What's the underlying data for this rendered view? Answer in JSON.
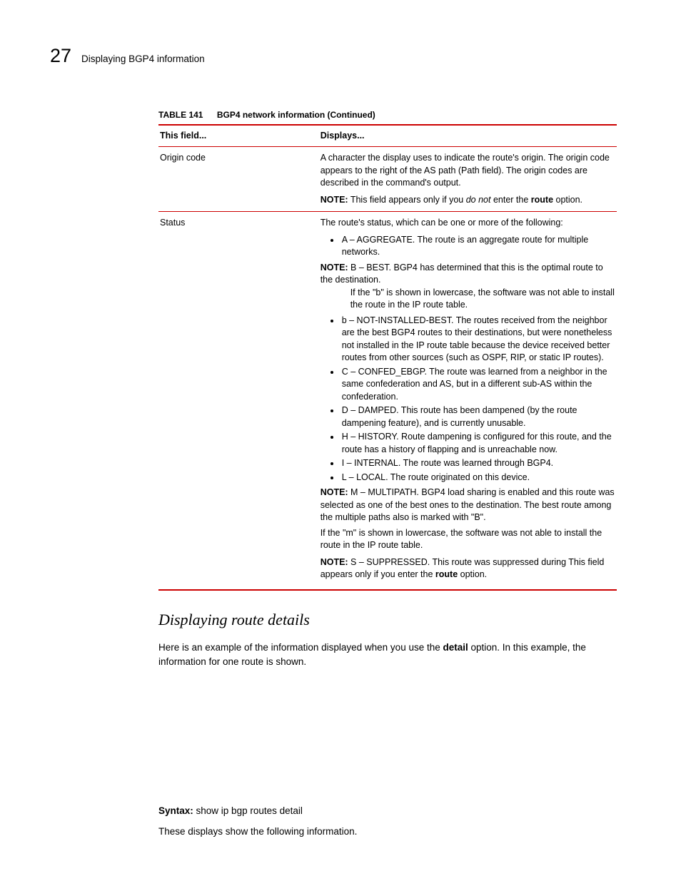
{
  "header": {
    "chapter_number": "27",
    "title": "Displaying BGP4 information"
  },
  "table": {
    "caption_label": "TABLE 141",
    "caption_title": "BGP4 network information  (Continued)",
    "head_field": "This field...",
    "head_displays": "Displays...",
    "row1": {
      "field": "Origin code",
      "p1": "A character the display uses to indicate the route's origin.  The origin code appears to the right of the AS path (Path field).  The origin codes are described in the command's output.",
      "note_label": "NOTE:",
      "note_pre": "  This field appears only if you ",
      "note_italic": "do not",
      "note_post": " enter the ",
      "note_bold": "route",
      "note_end": " option."
    },
    "row2": {
      "field": "Status",
      "p1": "The route's status, which can be one or more of the following:",
      "bul_a": "A – AGGREGATE. The route is an aggregate route for multiple networks.",
      "note1_label": "NOTE:",
      "note1_text": "  B – BEST. BGP4 has determined that this is the optimal route to the destination.",
      "note1_sub": "If the \"b\" is shown in lowercase, the software was not able to install the route in the IP route table.",
      "bul_b": "b – NOT-INSTALLED-BEST. The routes received from the neighbor are the best BGP4 routes to their destinations, but were nonetheless not installed in the IP route table because the device received better routes from other sources (such as OSPF, RIP, or static IP routes).",
      "bul_c": "C – CONFED_EBGP.  The route was learned from a neighbor in the same confederation and AS, but in a different sub-AS within the confederation.",
      "bul_d": "D – DAMPED.  This route has been dampened (by the route dampening feature), and is currently unusable.",
      "bul_h": "H – HISTORY.  Route dampening is configured for this route, and the route has a history of flapping and is unreachable now.",
      "bul_i": "I – INTERNAL.  The route was learned through BGP4.",
      "bul_l": "L – LOCAL. The route originated on this device.",
      "note2_label": "NOTE:",
      "note2_text": "  M – MULTIPATH.  BGP4 load sharing is enabled and this route was selected as one of the best ones to the destination.  The best route among the multiple paths also is marked with \"B\".",
      "note2_sub": "If the \"m\" is shown in lowercase, the software was not able to install the route in the IP route table.",
      "note3_label": "NOTE:",
      "note3_text_a": "  S – SUPPRESSED.  This route was suppressed during This field appears only if you enter the ",
      "note3_bold": "route",
      "note3_text_b": " option."
    }
  },
  "section": {
    "heading": "Displaying route details",
    "p1_pre": "Here is an example of the information displayed when you use the ",
    "p1_bold": "detail",
    "p1_post": " option.  In this example, the information for one route is shown.",
    "syntax_label": "Syntax:",
    "syntax_cmd": "  show ip bgp routes detail",
    "p2": "These displays show the following information."
  }
}
